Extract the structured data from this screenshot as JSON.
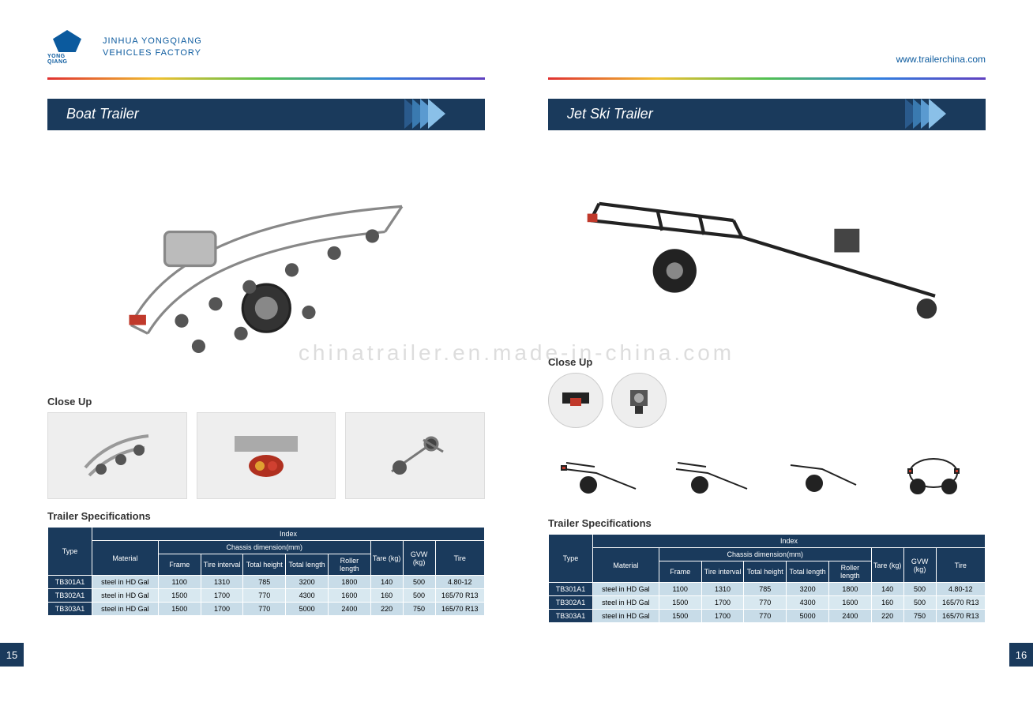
{
  "company": {
    "logo_name": "YONG QIANG",
    "line1": "JINHUA YONGQIANG",
    "line2": "VEHICLES FACTORY",
    "website": "www.trailerchina.com"
  },
  "colors": {
    "brand_blue": "#1a3a5c",
    "accent_blue": "#0b5a9e",
    "table_row_odd": "#c8dce8",
    "table_row_even": "#d8e8f0"
  },
  "left_page": {
    "page_number": "15",
    "section_title": "Boat  Trailer",
    "closeup_label": "Close Up",
    "specs_title": "Trailer Specifications",
    "table": {
      "headers": {
        "type": "Type",
        "index": "Index",
        "material": "Material",
        "chassis": "Chassis dimension(mm)",
        "frame": "Frame",
        "tire_interval": "Tire interval",
        "total_height": "Total height",
        "total_length": "Total length",
        "roller_length": "Roller length",
        "tare": "Tare (kg)",
        "gvw": "GVW (kg)",
        "tire": "Tire"
      },
      "rows": [
        {
          "type": "TB301A1",
          "material": "steel in HD Gal",
          "frame": "1100",
          "tire_interval": "1310",
          "total_height": "785",
          "total_length": "3200",
          "roller_length": "1800",
          "tare": "140",
          "gvw": "500",
          "tire": "4.80-12"
        },
        {
          "type": "TB302A1",
          "material": "steel in HD Gal",
          "frame": "1500",
          "tire_interval": "1700",
          "total_height": "770",
          "total_length": "4300",
          "roller_length": "1600",
          "tare": "160",
          "gvw": "500",
          "tire": "165/70 R13"
        },
        {
          "type": "TB303A1",
          "material": "steel in HD Gal",
          "frame": "1500",
          "tire_interval": "1700",
          "total_height": "770",
          "total_length": "5000",
          "roller_length": "2400",
          "tare": "220",
          "gvw": "750",
          "tire": "165/70 R13"
        }
      ]
    }
  },
  "right_page": {
    "page_number": "16",
    "section_title": "Jet Ski Trailer",
    "closeup_label": "Close Up",
    "specs_title": "Trailer Specifications",
    "table": {
      "headers": {
        "type": "Type",
        "index": "Index",
        "material": "Material",
        "chassis": "Chassis dimension(mm)",
        "frame": "Frame",
        "tire_interval": "Tire interval",
        "total_height": "Total height",
        "total_length": "Total length",
        "roller_length": "Roller length",
        "tare": "Tare (kg)",
        "gvw": "GVW (kg)",
        "tire": "Tire"
      },
      "rows": [
        {
          "type": "TB301A1",
          "material": "steel in HD Gal",
          "frame": "1100",
          "tire_interval": "1310",
          "total_height": "785",
          "total_length": "3200",
          "roller_length": "1800",
          "tare": "140",
          "gvw": "500",
          "tire": "4.80-12"
        },
        {
          "type": "TB302A1",
          "material": "steel in HD Gal",
          "frame": "1500",
          "tire_interval": "1700",
          "total_height": "770",
          "total_length": "4300",
          "roller_length": "1600",
          "tare": "160",
          "gvw": "500",
          "tire": "165/70 R13"
        },
        {
          "type": "TB303A1",
          "material": "steel in HD Gal",
          "frame": "1500",
          "tire_interval": "1700",
          "total_height": "770",
          "total_length": "5000",
          "roller_length": "2400",
          "tare": "220",
          "gvw": "750",
          "tire": "165/70 R13"
        }
      ]
    }
  },
  "watermark": "chinatrailer.en.made-in-china.com"
}
